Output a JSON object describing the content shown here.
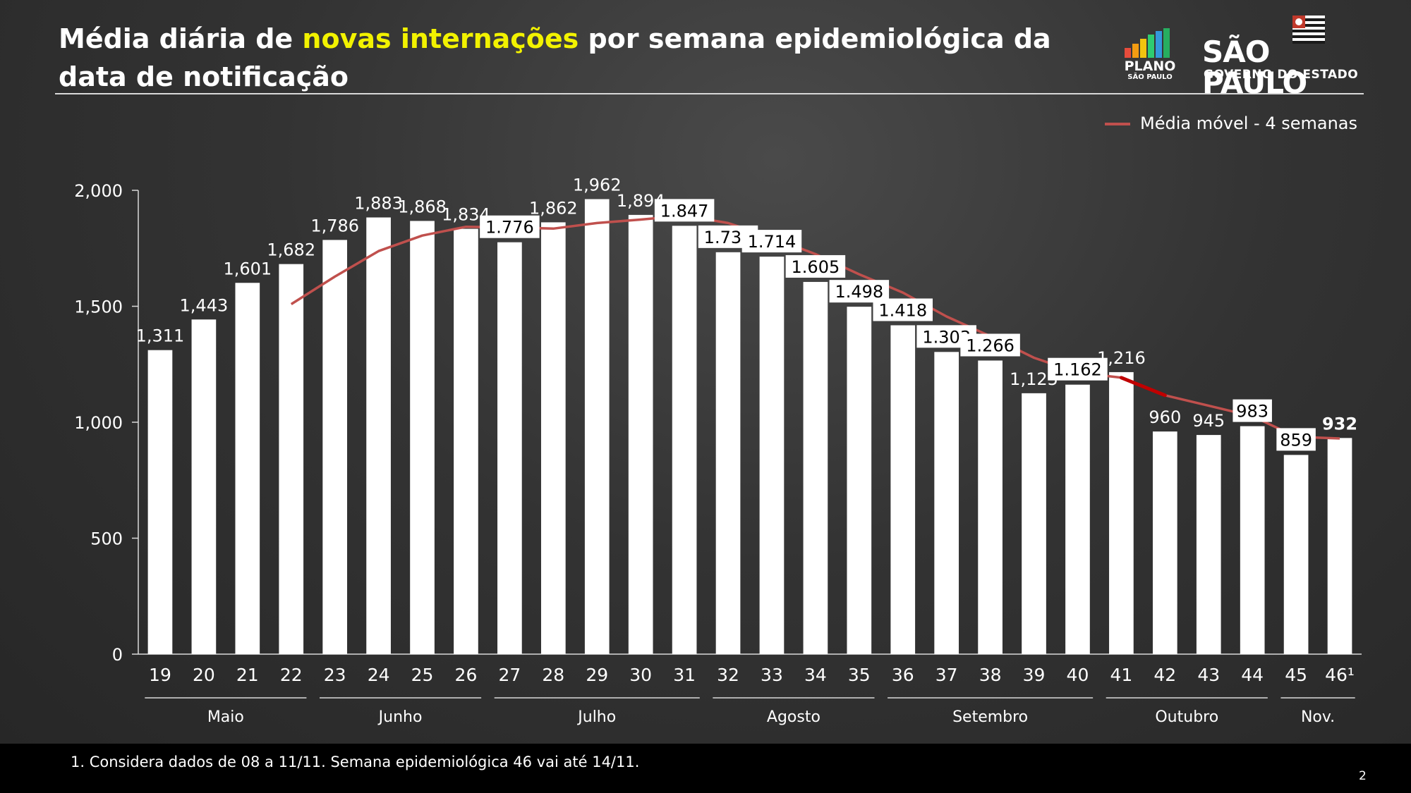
{
  "header": {
    "title_part1": "Média diária de ",
    "title_highlight": "novas internações",
    "title_part2": " por semana epidemiológica da data de notificação"
  },
  "logos": {
    "plano": "PLANO",
    "plano_sub": "SÃO PAULO",
    "sp_main": "SÃO PAULO",
    "sp_sub": "GOVERNO DO ESTADO"
  },
  "legend": {
    "label": "Média móvel - 4 semanas"
  },
  "footer": {
    "footnote": "1. Considera dados de 08 a 11/11. Semana epidemiológica 46 vai até 14/11.",
    "page": "2"
  },
  "colors": {
    "bars": "#ffffff",
    "moving_average": "#c0504d",
    "moving_average_highlight": "#c00000",
    "title_highlight": "#f2f200",
    "label_box": "#ffffff",
    "label_box_text": "#000000"
  },
  "chart_data": {
    "type": "bar",
    "categories": [
      "19",
      "20",
      "21",
      "22",
      "23",
      "24",
      "25",
      "26",
      "27",
      "28",
      "29",
      "30",
      "31",
      "32",
      "33",
      "34",
      "35",
      "36",
      "37",
      "38",
      "39",
      "40",
      "41",
      "42",
      "43",
      "44",
      "45",
      "46¹"
    ],
    "series": [
      {
        "values": [
          1311,
          1443,
          1601,
          1682,
          1786,
          1883,
          1868,
          1834,
          1776,
          1862,
          1962,
          1894,
          1847,
          1733,
          1714,
          1605,
          1498,
          1418,
          1303,
          1266,
          1125,
          1162,
          1216,
          960,
          945,
          983,
          859,
          932
        ],
        "labels": [
          "1,311",
          "1,443",
          "1,601",
          "1,682",
          "1,786",
          "1,883",
          "1,868",
          "1,834",
          "1.776",
          "1,862",
          "1,962",
          "1,894",
          "1.847",
          "1.733",
          "1.714",
          "1.605",
          "1.498",
          "1.418",
          "1.303",
          "1.266",
          "1,125",
          "1.162",
          "1,216",
          "960",
          "945",
          "983",
          "859",
          "932"
        ],
        "boxed_label": [
          false,
          false,
          false,
          false,
          false,
          false,
          false,
          false,
          true,
          false,
          false,
          false,
          true,
          true,
          true,
          true,
          true,
          true,
          true,
          true,
          false,
          true,
          false,
          false,
          false,
          true,
          true,
          false
        ]
      },
      {
        "name": "Média móvel - 4 semanas",
        "type": "line",
        "values": [
          null,
          null,
          null,
          1509,
          1628,
          1738,
          1805,
          1843,
          1840,
          1835,
          1859,
          1874,
          1891,
          1859,
          1797,
          1725,
          1638,
          1559,
          1456,
          1371,
          1278,
          1214,
          1192,
          1116,
          1071,
          1026,
          937,
          930
        ]
      }
    ],
    "months": [
      {
        "label": "Maio",
        "from": "19",
        "to": "22"
      },
      {
        "label": "Junho",
        "from": "23",
        "to": "26"
      },
      {
        "label": "Julho",
        "from": "27",
        "to": "31"
      },
      {
        "label": "Agosto",
        "from": "32",
        "to": "35"
      },
      {
        "label": "Setembro",
        "from": "36",
        "to": "40"
      },
      {
        "label": "Outubro",
        "from": "41",
        "to": "44"
      },
      {
        "label": "Nov.",
        "from": "45",
        "to": "46¹"
      }
    ],
    "yticks": [
      "0",
      "500",
      "1,000",
      "1,500",
      "2,000"
    ],
    "ylim": [
      0,
      2000
    ]
  }
}
